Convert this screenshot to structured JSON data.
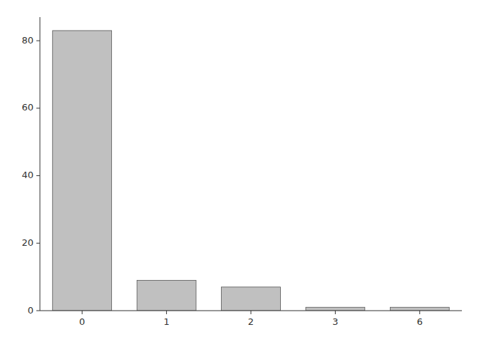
{
  "chart_data": {
    "type": "bar",
    "categories": [
      "0",
      "1",
      "2",
      "3",
      "6"
    ],
    "values": [
      83,
      9,
      7,
      1,
      1
    ],
    "color": "#c0c0c0",
    "ylim": [
      0,
      87
    ],
    "yticks": [
      0,
      20,
      40,
      60,
      80
    ],
    "grid": false
  }
}
